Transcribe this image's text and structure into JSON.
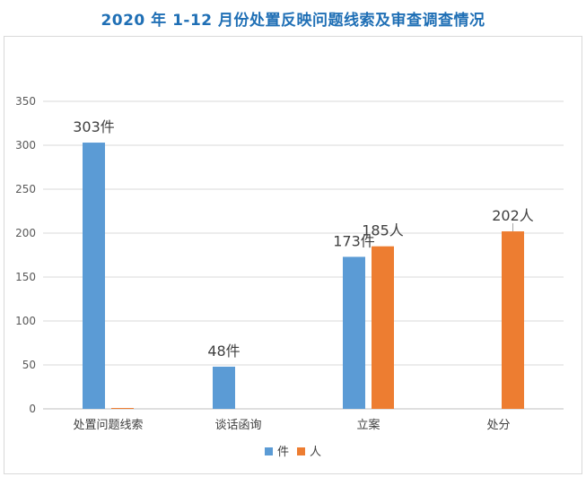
{
  "title": "2020 年 1-12 月份处置反映问题线索及审查调查情况",
  "chart_data": {
    "type": "bar",
    "categories": [
      "处置问题线索",
      "谈话函询",
      "立案",
      "处分"
    ],
    "series": [
      {
        "name": "件",
        "color": "#5b9bd5",
        "values": [
          303,
          48,
          173,
          null
        ],
        "labels": [
          "303件",
          "48件",
          "173件",
          ""
        ]
      },
      {
        "name": "人",
        "color": "#ed7d31",
        "values": [
          1,
          null,
          185,
          202
        ],
        "labels": [
          "",
          "",
          "185人",
          "202人"
        ]
      }
    ],
    "ylim": [
      0,
      350
    ],
    "yticks": [
      0,
      50,
      100,
      150,
      200,
      250,
      300,
      350
    ],
    "grid": true,
    "legend_position": "bottom"
  }
}
